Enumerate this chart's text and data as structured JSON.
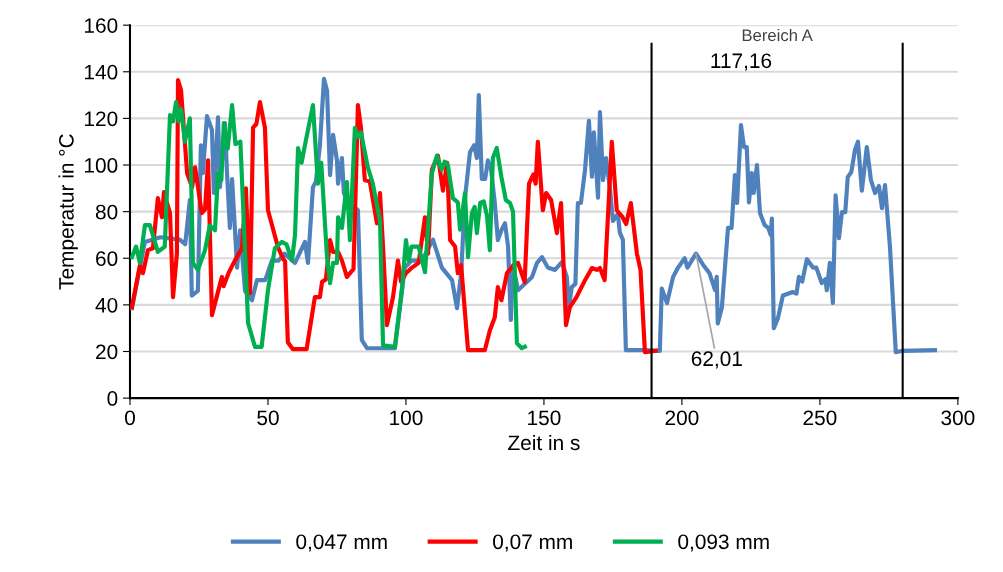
{
  "chart_data": {
    "type": "line",
    "xlabel": "Zeit in s",
    "ylabel": "Temperatur in °C",
    "xlim": [
      0,
      300
    ],
    "xticks": [
      0,
      50,
      100,
      150,
      200,
      250,
      300
    ],
    "ylim": [
      0,
      160
    ],
    "yticks": [
      0,
      20,
      40,
      60,
      80,
      100,
      120,
      140,
      160
    ],
    "grid": "y",
    "legend": "bottom",
    "marker": "none",
    "line_style": "solid",
    "ref_lines": [
      {
        "axis": "x",
        "value": 189,
        "color": "#000000"
      },
      {
        "axis": "x",
        "value": 280,
        "color": "#000000"
      }
    ],
    "annotations": [
      "Bereich A",
      {
        "text": "117,16",
        "x": 221.4,
        "y": 117.16
      },
      {
        "text": "62,01",
        "x": 205.1,
        "y": 62.01
      }
    ],
    "series": [
      {
        "name": "0,047 mm",
        "color": "#4f81bd",
        "x": [
          0.7,
          5.4,
          11,
          18,
          20,
          21.7,
          22.4,
          24.6,
          25.7,
          26.4,
          27.9,
          29.7,
          30.4,
          31.9,
          32.6,
          34.4,
          35.1,
          36.2,
          37,
          38.8,
          39.9,
          41.7,
          44.2,
          46,
          49,
          51.4,
          53.8,
          56,
          59.8,
          63.4,
          64.5,
          66.3,
          67.4,
          68.8,
          70.3,
          71.4,
          72.5,
          73.6,
          75,
          75.4,
          76.8,
          77.5,
          79,
          82.6,
          84,
          85.9,
          96,
          99.6,
          102,
          105.8,
          109.8,
          113,
          116.7,
          118.5,
          120,
          121.4,
          123.2,
          124.7,
          125.7,
          126.4,
          127.5,
          128.7,
          129.7,
          130.8,
          132.2,
          133.3,
          134.6,
          135.9,
          137,
          138,
          138.8,
          140.6,
          143,
          145.7,
          147.5,
          149.3,
          151.4,
          154,
          156.5,
          158.3,
          159,
          160.1,
          161.4,
          162.3,
          163.4,
          164.9,
          166.3,
          167.4,
          168.1,
          169.6,
          170.3,
          171.4,
          172.5,
          174,
          175,
          176.8,
          177.5,
          178.6,
          179.7,
          186.6,
          192,
          192.7,
          194.6,
          196.8,
          198.6,
          201,
          202,
          205.1,
          207.8,
          210,
          212,
          212.6,
          213,
          214.5,
          216.7,
          218,
          219.2,
          220,
          221.4,
          222.5,
          223.5,
          224.3,
          225.3,
          226,
          227.2,
          228.3,
          230,
          231.3,
          232.2,
          232.6,
          233.3,
          234.8,
          236.6,
          240.2,
          241.5,
          242.4,
          243.6,
          245.3,
          247.5,
          248.7,
          250.7,
          252,
          252.5,
          253.6,
          254.7,
          255.7,
          256.9,
          258,
          259.2,
          260.1,
          261.4,
          262.7,
          263.8,
          265.2,
          267,
          268.5,
          270,
          271.4,
          272.5,
          273.6,
          275.4,
          277.5,
          280,
          291.7
        ],
        "values": [
          38.6,
          67,
          69,
          68,
          66,
          85,
          44,
          46,
          108.5,
          96.5,
          121,
          115,
          88,
          120.5,
          90.5,
          118,
          98,
          73,
          94,
          56,
          72,
          46,
          42,
          50.6,
          50.6,
          59,
          59,
          62,
          58,
          67,
          58,
          90.5,
          93,
          108,
          137,
          132,
          95.7,
          113,
          102,
          92,
          103,
          88,
          84,
          80.6,
          25,
          21.4,
          21.4,
          56,
          59,
          59,
          68,
          56,
          50.6,
          38.6,
          53.6,
          86,
          105.5,
          108.5,
          103,
          130,
          94,
          94,
          102,
          98.5,
          83.7,
          67.8,
          72,
          75,
          65,
          33.5,
          57,
          46.3,
          49,
          52,
          58,
          60.5,
          56,
          55,
          58.3,
          52,
          39,
          47.6,
          49,
          83.7,
          83.7,
          98,
          119,
          95,
          114,
          86,
          122.7,
          93.5,
          103,
          89,
          76,
          79,
          71,
          68,
          20.6,
          20.6,
          20.3,
          47,
          40.8,
          52,
          56,
          60,
          56,
          62.01,
          57,
          53.6,
          46.3,
          52,
          32,
          39,
          73,
          73,
          95.7,
          83.7,
          117.16,
          107.7,
          107.7,
          84,
          96.5,
          88,
          100,
          79.4,
          74.2,
          73,
          70,
          77,
          30,
          34.3,
          44,
          45.5,
          44.8,
          52,
          50,
          59.6,
          56,
          56,
          49.3,
          51,
          46.3,
          58,
          40.8,
          87,
          68.6,
          79.8,
          79.8,
          94.8,
          97,
          106.4,
          110,
          89,
          107.7,
          93.5,
          88,
          91,
          81.5,
          91.4,
          64.8,
          19.7,
          20.3,
          20.6
        ]
      },
      {
        "name": "0,07 mm",
        "color": "#ff0000",
        "x": [
          0.7,
          3.6,
          4.7,
          6.5,
          8.3,
          10.1,
          11.6,
          12.3,
          14.5,
          15.6,
          17,
          17.4,
          18.5,
          20.7,
          22.5,
          23.6,
          26,
          27.2,
          28.3,
          29.7,
          33.3,
          33.9,
          35.7,
          38,
          40.6,
          42,
          43.5,
          44.6,
          45.8,
          47.1,
          48.9,
          50,
          53.6,
          55.4,
          56.2,
          57.2,
          59,
          64,
          67,
          68.8,
          69.6,
          71,
          72.5,
          73.6,
          75.4,
          76.8,
          78.6,
          81,
          82.6,
          83.7,
          85.1,
          86.9,
          89.5,
          90.6,
          91.7,
          93.1,
          95.3,
          97.1,
          98.2,
          100,
          102.2,
          104.6,
          106.9,
          108,
          109.4,
          111.6,
          113.4,
          114.9,
          116,
          117.8,
          118.8,
          120,
          122.5,
          128.6,
          130.4,
          132.2,
          133.3,
          134.6,
          136.6,
          139,
          140.6,
          143,
          144.6,
          146.2,
          147,
          147.8,
          149.6,
          150.8,
          152.6,
          154.7,
          156.2,
          158,
          159.4,
          161.8,
          164.9,
          167.4,
          169.2,
          170.3,
          172,
          174.6,
          176.4,
          178.3,
          179.8,
          181.5,
          183.7,
          185,
          186.6,
          190.5
        ],
        "values": [
          39,
          57,
          53.6,
          63.5,
          64.3,
          85.8,
          77.6,
          88.4,
          79.4,
          43.3,
          62,
          136.4,
          132,
          96.5,
          90.5,
          99,
          79.4,
          81,
          102,
          35.6,
          52,
          48,
          53.6,
          59,
          64.3,
          90,
          45,
          116,
          117.6,
          127,
          116,
          80.6,
          64.8,
          60,
          58.6,
          24,
          21,
          21,
          43.3,
          43.3,
          49.8,
          51,
          67.8,
          62.7,
          62.7,
          59,
          52,
          55.4,
          125.7,
          116,
          93.5,
          93,
          75,
          88,
          64.8,
          31.3,
          43.3,
          59,
          50,
          53.6,
          56,
          58,
          77.6,
          62,
          98,
          104,
          89,
          101,
          67.8,
          65,
          53.6,
          57,
          20.6,
          20.6,
          29,
          34.7,
          47.6,
          42,
          53.6,
          57,
          58,
          49.8,
          92,
          96,
          92,
          110,
          80.6,
          88,
          85,
          70.8,
          83.7,
          31.3,
          39,
          43.3,
          50.6,
          55.8,
          55,
          55.8,
          50.6,
          110,
          80.6,
          78,
          74.7,
          83.7,
          62,
          55,
          19.7,
          20.3
        ]
      },
      {
        "name": "0,093 mm",
        "color": "#00b050",
        "x": [
          0.7,
          2.2,
          3.6,
          5.4,
          7.2,
          10.1,
          12.6,
          14.5,
          15.6,
          16.7,
          17.6,
          18.5,
          19.9,
          21.7,
          22.8,
          24.6,
          27.2,
          28.9,
          30.8,
          31.9,
          33.1,
          34,
          35.4,
          37,
          38.2,
          40,
          42.8,
          45.3,
          47.7,
          50,
          52.5,
          55,
          56.7,
          58.7,
          59.8,
          60.9,
          62.2,
          63.4,
          66.3,
          68.1,
          69.3,
          71.4,
          72.5,
          73.6,
          75,
          75.4,
          76.8,
          78.6,
          79.7,
          81.5,
          82.6,
          83.7,
          86.2,
          88,
          90.6,
          91.7,
          96,
          98.6,
          100,
          101,
          102,
          104.6,
          106.9,
          109.4,
          111.2,
          112.9,
          114,
          115.2,
          117,
          118.8,
          119.6,
          121.4,
          122.5,
          123.9,
          124.9,
          125.7,
          126.9,
          128.2,
          129.4,
          130.4,
          131.5,
          132.9,
          134.6,
          136.2,
          137.7,
          138.8,
          140.2,
          142,
          143.1
        ],
        "values": [
          60.5,
          65,
          58,
          74.2,
          74.2,
          62.7,
          65,
          121.4,
          118.7,
          127,
          118.7,
          124,
          110,
          120,
          58,
          55,
          63.5,
          74,
          72,
          96.5,
          93.5,
          118,
          107,
          125.7,
          109,
          110,
          32.2,
          22,
          22,
          46.3,
          64.3,
          67,
          66,
          59,
          70,
          107.3,
          101,
          108.5,
          125.7,
          92,
          101,
          60.5,
          49.3,
          58,
          58,
          77.6,
          73,
          92.7,
          67.8,
          116,
          112,
          114,
          99,
          92,
          76,
          22.7,
          22,
          47.6,
          67.8,
          59,
          65,
          65,
          54,
          96.5,
          104,
          98,
          101.4,
          100,
          85.8,
          84,
          72.3,
          88,
          60.5,
          79.4,
          82,
          70.8,
          83.7,
          84.4,
          78,
          63.5,
          103,
          107.3,
          94.8,
          85,
          83.7,
          80,
          23.6,
          21.4,
          22
        ]
      }
    ]
  }
}
